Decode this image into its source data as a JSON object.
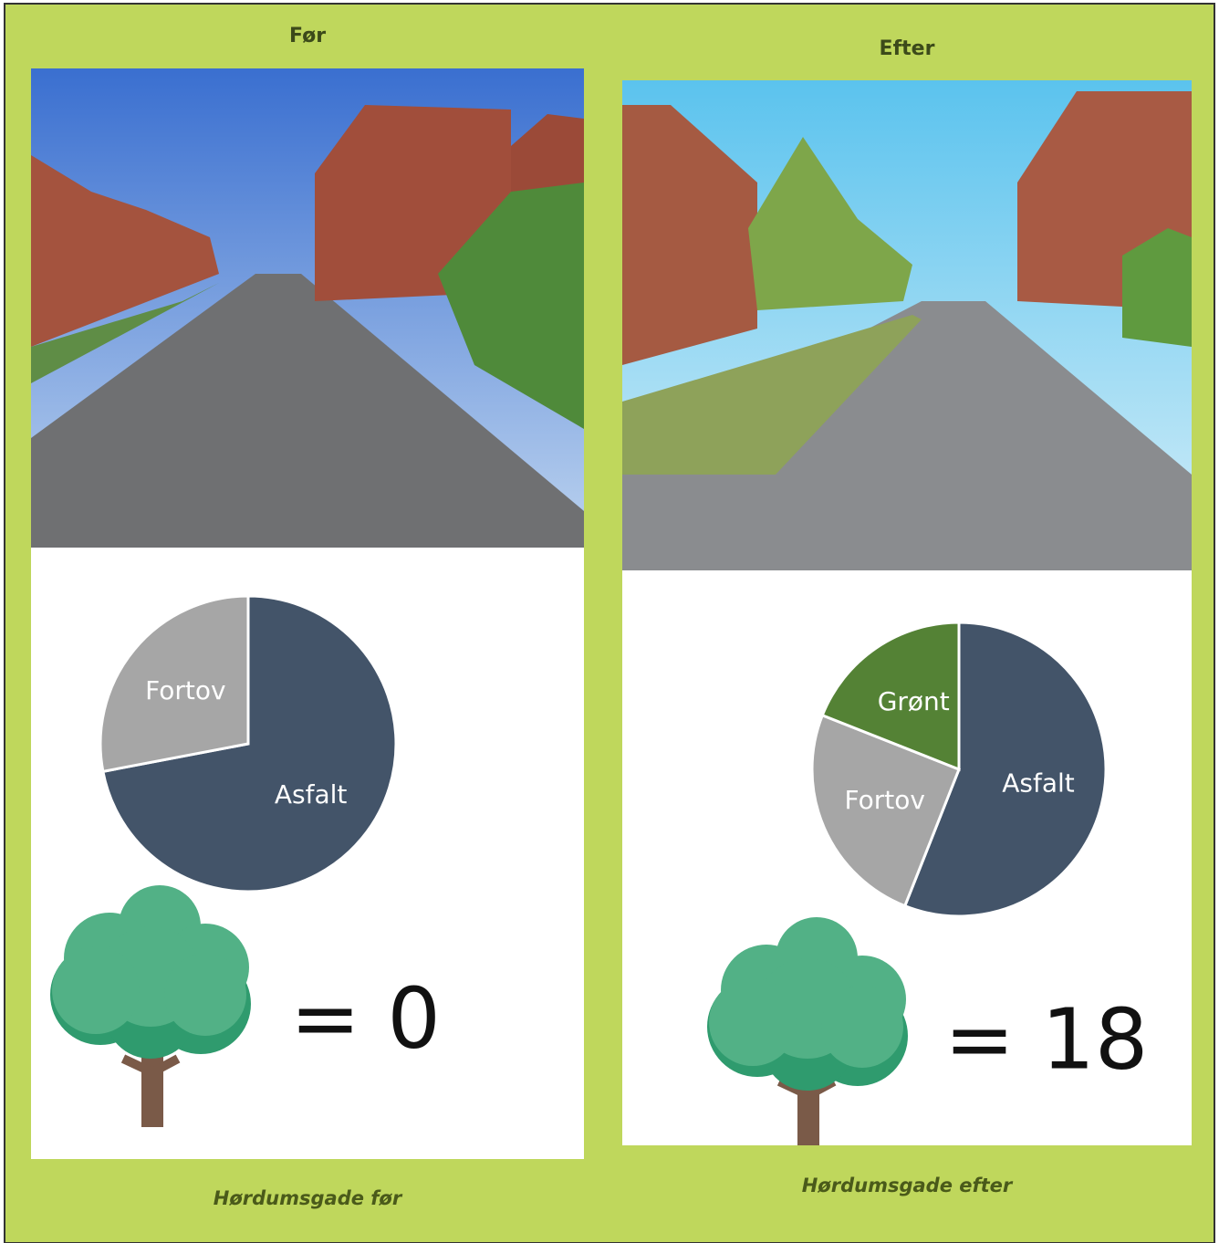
{
  "panels": [
    {
      "heading": "Før",
      "caption": "Hørdumsgade før",
      "tree_count": "= 0"
    },
    {
      "heading": "Efter",
      "caption": "Hørdumsgade efter",
      "tree_count": "= 18"
    }
  ],
  "chart_data": [
    {
      "type": "pie",
      "categories": [
        "Asfalt",
        "Fortov"
      ],
      "values": [
        72,
        28
      ],
      "colors": [
        "#435469",
        "#a6a6a6"
      ]
    },
    {
      "type": "pie",
      "categories": [
        "Asfalt",
        "Fortov",
        "Grønt"
      ],
      "values": [
        56,
        25,
        19
      ],
      "colors": [
        "#435469",
        "#a6a6a6",
        "#548235"
      ]
    }
  ]
}
